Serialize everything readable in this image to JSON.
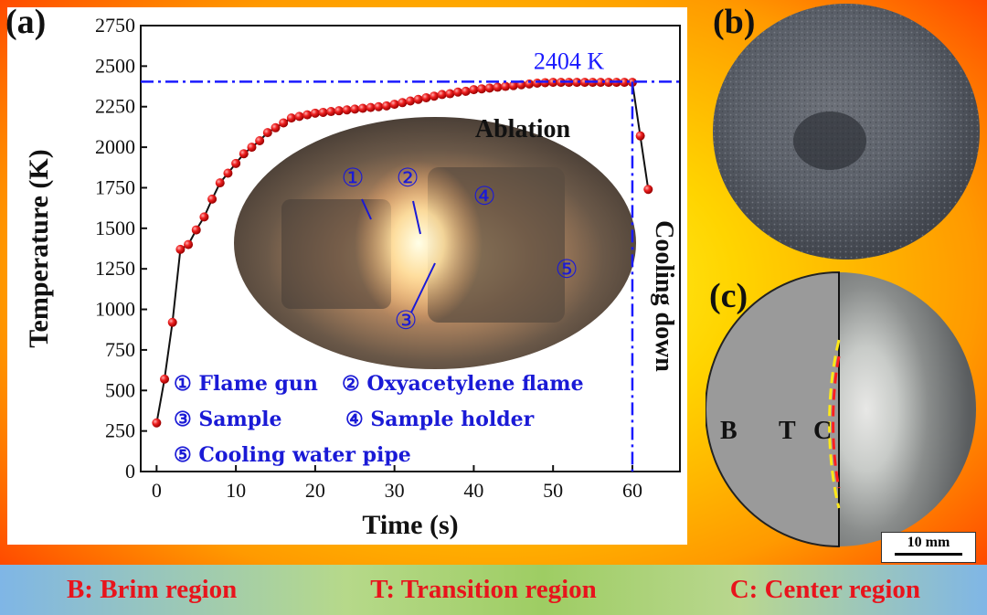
{
  "panel_labels": {
    "a": "(a)",
    "b": "(b)",
    "c": "(c)"
  },
  "chart_data": {
    "type": "scatter",
    "title": "",
    "xlabel": "Time (s)",
    "ylabel": "Temperature  (K)",
    "xlim": [
      -2,
      66
    ],
    "ylim": [
      0,
      2750
    ],
    "x_ticks": [
      0,
      10,
      20,
      30,
      40,
      50,
      60
    ],
    "y_ticks": [
      0,
      250,
      500,
      750,
      1000,
      1250,
      1500,
      1750,
      2000,
      2250,
      2500,
      2750
    ],
    "series": [
      {
        "x": [
          0,
          1,
          2,
          3,
          4,
          5,
          6,
          7,
          8,
          9,
          10,
          11,
          12,
          13,
          14,
          15,
          16,
          17,
          18,
          19,
          20,
          21,
          22,
          23,
          24,
          25,
          26,
          27,
          28,
          29,
          30,
          31,
          32,
          33,
          34,
          35,
          36,
          37,
          38,
          39,
          40,
          41,
          42,
          43,
          44,
          45,
          46,
          47,
          48,
          49,
          50,
          51,
          52,
          53,
          54,
          55,
          56,
          57,
          58,
          59,
          60,
          61,
          62
        ],
        "y": [
          300,
          570,
          920,
          1370,
          1400,
          1490,
          1570,
          1680,
          1780,
          1840,
          1900,
          1960,
          2000,
          2040,
          2090,
          2120,
          2150,
          2180,
          2190,
          2200,
          2210,
          2215,
          2220,
          2225,
          2230,
          2235,
          2240,
          2245,
          2250,
          2255,
          2265,
          2275,
          2285,
          2295,
          2305,
          2315,
          2325,
          2330,
          2340,
          2345,
          2355,
          2360,
          2365,
          2370,
          2375,
          2380,
          2385,
          2390,
          2395,
          2398,
          2400,
          2400,
          2400,
          2400,
          2400,
          2400,
          2400,
          2400,
          2400,
          2400,
          2400,
          2070,
          1740
        ]
      }
    ],
    "reference_line": {
      "y": 2404,
      "label": "2404 K"
    },
    "cooling_line_x": 60,
    "annotations": {
      "ablation": "Ablation",
      "cooling": "Cooling down"
    },
    "legend_entries": [
      "① Flame gun",
      "② Oxyacetylene flame",
      "③ Sample",
      "④ Sample holder",
      "⑤ Cooling water pipe"
    ],
    "photo_markers": [
      "①",
      "②",
      "③",
      "④",
      "⑤"
    ],
    "grid": false,
    "colors": {
      "points": "#e8141c",
      "line": "#111111",
      "reference": "#1a1aff",
      "legend_text": "#1a1ad6"
    }
  },
  "region_labels": {
    "b": "B",
    "t": "T",
    "c": "C"
  },
  "scale_bar": "10 mm",
  "bottom_legend": [
    "B: Brim region",
    "T: Transition region",
    "C: Center region"
  ]
}
